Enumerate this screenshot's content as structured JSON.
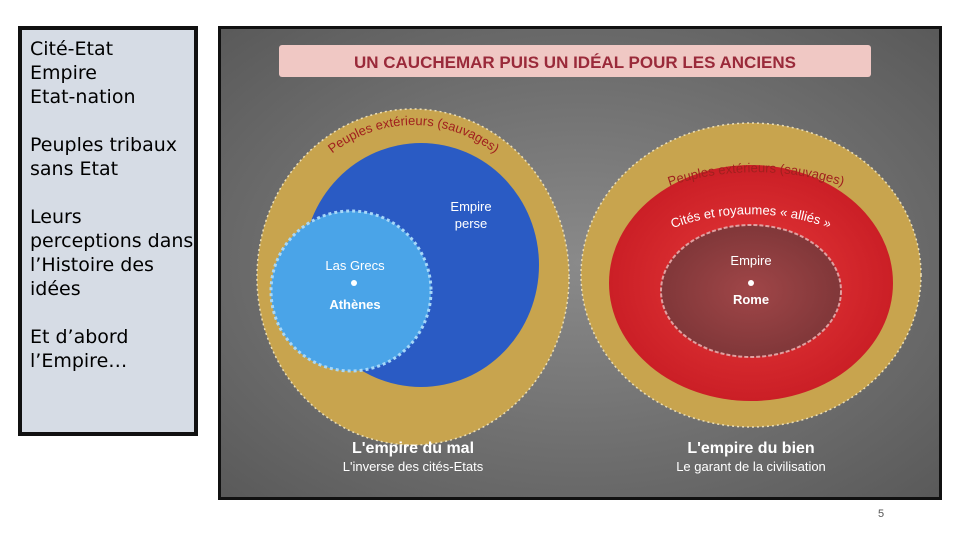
{
  "sidebar": {
    "lines": [
      "Cité-Etat",
      "Empire",
      "Etat-nation",
      "",
      "Peuples tribaux",
      "sans Etat",
      "",
      "Leurs",
      "perceptions dans",
      "l’Histoire des",
      "idées",
      "",
      "Et d’abord",
      "l’Empire…"
    ]
  },
  "figure": {
    "banner": "UN CAUCHEMAR PUIS UN IDÉAL POUR LES ANCIENS",
    "left": {
      "outer_ring": "Peuples extérieurs (sauvages)",
      "empire_label_1": "Empire",
      "empire_label_2": "perse",
      "inner_label": "Las Grecs",
      "city": "Athènes",
      "caption_title": "L'empire du mal",
      "caption_sub": "L'inverse des cités-Etats"
    },
    "right": {
      "outer_ring": "Peuples extérieurs (sauvages)",
      "middle_ring": "Cités et royaumes « alliés »",
      "empire_label": "Empire",
      "city": "Rome",
      "caption_title": "L'empire du bien",
      "caption_sub": "Le garant de la civilisation"
    }
  },
  "slide_number": "5",
  "colors": {
    "sidebar_bg": "#d6dce5",
    "gold_ring": "#c8a44e",
    "blue_empire": "#2a5bc4",
    "light_blue": "#4aa4e8",
    "red_empire": "#d8222a",
    "banner_bg": "#f0c8c4",
    "banner_text": "#9a2a3a"
  }
}
